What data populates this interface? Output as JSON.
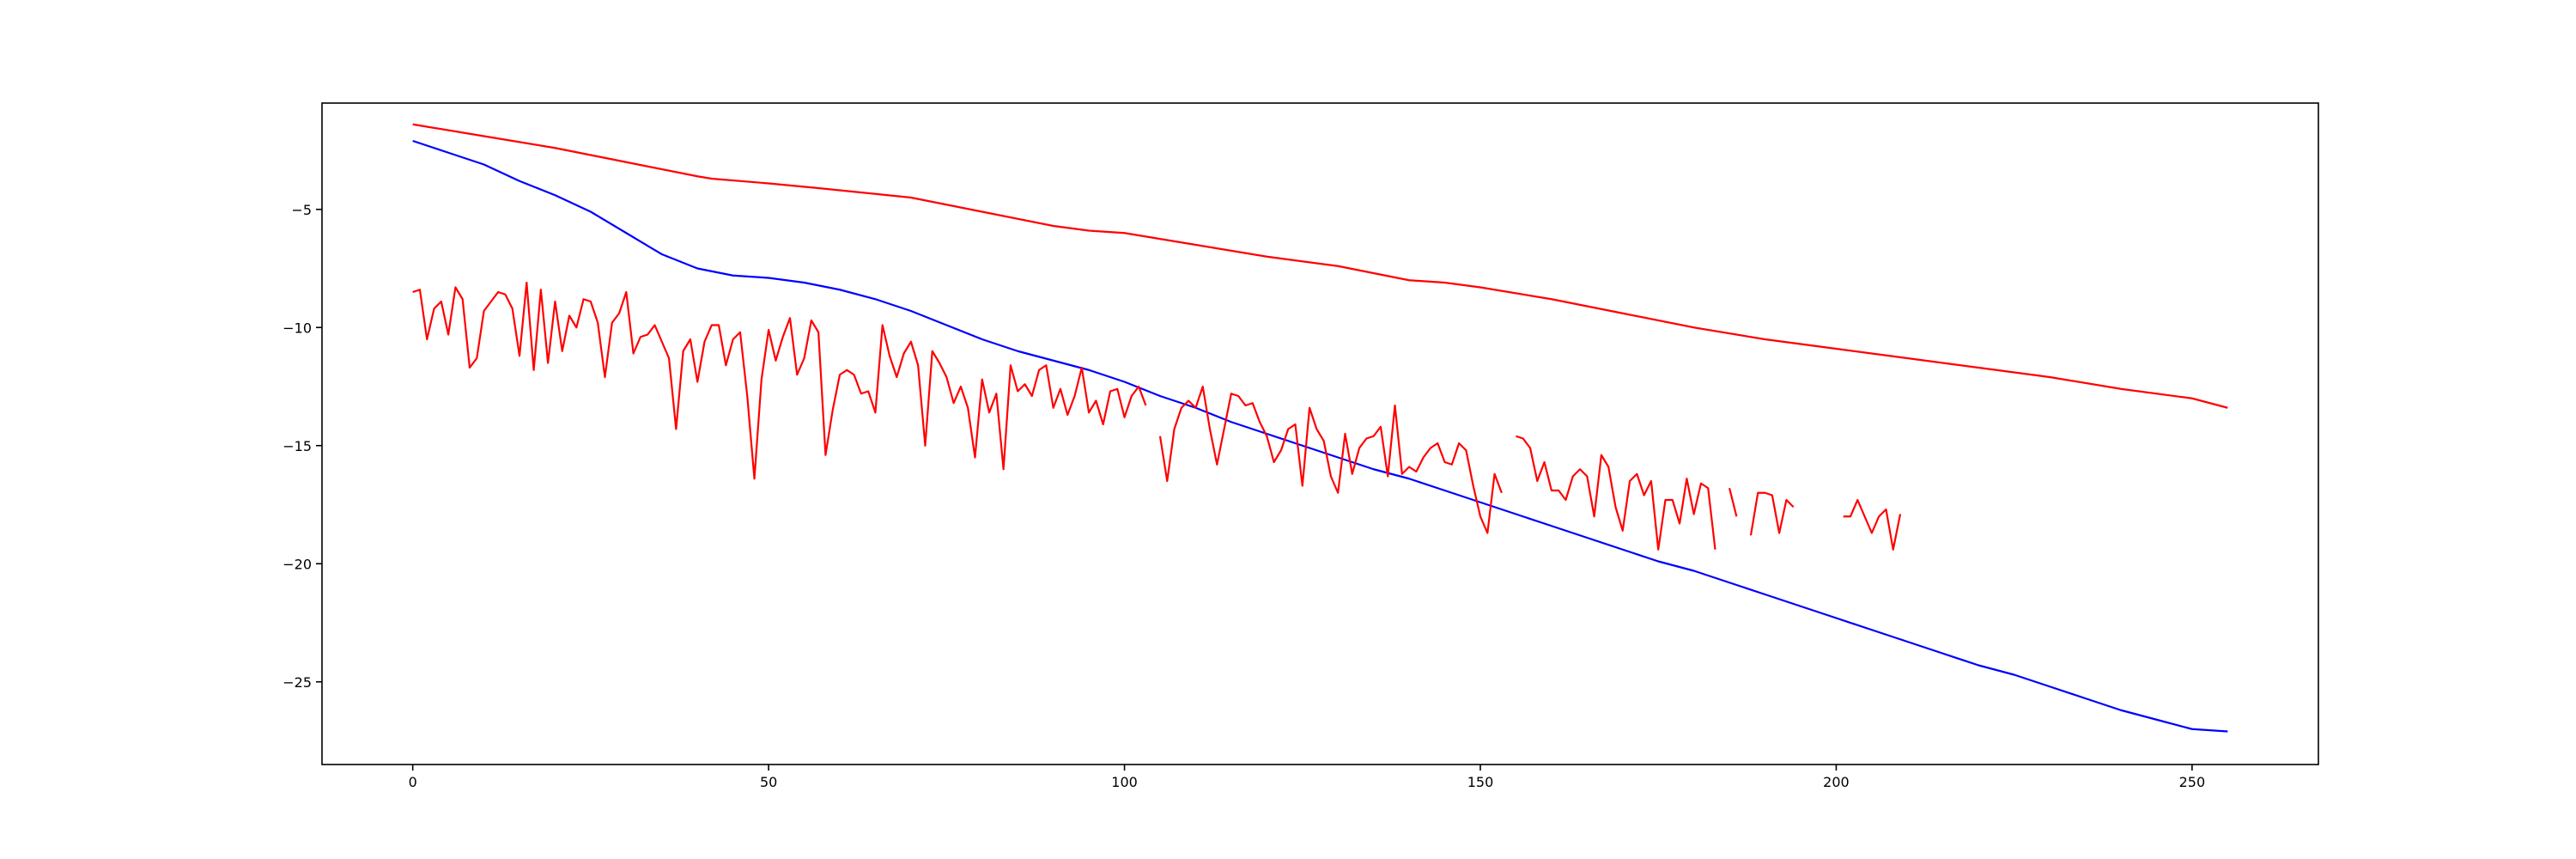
{
  "chart_data": {
    "type": "line",
    "title": "",
    "xlabel": "",
    "ylabel": "",
    "xlim": [
      -12.75,
      267.75
    ],
    "ylim": [
      -28.5,
      -0.5
    ],
    "grid": false,
    "legend": "none",
    "x_ticks": [
      {
        "value": 0,
        "label": "0"
      },
      {
        "value": 50,
        "label": "50"
      },
      {
        "value": 100,
        "label": "100"
      },
      {
        "value": 150,
        "label": "150"
      },
      {
        "value": 200,
        "label": "200"
      },
      {
        "value": 250,
        "label": "250"
      }
    ],
    "y_ticks": [
      {
        "value": -5,
        "label": "−5"
      },
      {
        "value": -10,
        "label": "−10"
      },
      {
        "value": -15,
        "label": "−15"
      },
      {
        "value": -20,
        "label": "−20"
      },
      {
        "value": -25,
        "label": "−25"
      }
    ],
    "series": [
      {
        "color": "#ff0000",
        "x": [
          0,
          10,
          20,
          30,
          40,
          42,
          50,
          57,
          70,
          80,
          90,
          95,
          100,
          110,
          120,
          130,
          140,
          145,
          150,
          160,
          170,
          180,
          190,
          200,
          210,
          220,
          230,
          240,
          250,
          255
        ],
        "y": [
          -1.4,
          -1.9,
          -2.4,
          -3.0,
          -3.6,
          -3.7,
          -3.9,
          -4.1,
          -4.5,
          -5.1,
          -5.7,
          -5.9,
          -6.0,
          -6.5,
          -7.0,
          -7.4,
          -8.0,
          -8.1,
          -8.3,
          -8.8,
          -9.4,
          -10.0,
          -10.5,
          -10.9,
          -11.3,
          -11.7,
          -12.1,
          -12.6,
          -13.0,
          -13.4
        ]
      },
      {
        "color": "#0000ff",
        "x": [
          0,
          5,
          10,
          15,
          20,
          25,
          30,
          35,
          40,
          45,
          50,
          55,
          60,
          65,
          70,
          75,
          80,
          85,
          90,
          95,
          100,
          105,
          110,
          115,
          120,
          125,
          130,
          135,
          140,
          145,
          150,
          155,
          160,
          165,
          170,
          175,
          180,
          185,
          190,
          195,
          200,
          205,
          210,
          215,
          220,
          225,
          230,
          235,
          240,
          245,
          250,
          255
        ],
        "y": [
          -2.1,
          -2.6,
          -3.1,
          -3.8,
          -4.4,
          -5.1,
          -6.0,
          -6.9,
          -7.5,
          -7.8,
          -7.9,
          -8.1,
          -8.4,
          -8.8,
          -9.3,
          -9.9,
          -10.5,
          -11.0,
          -11.4,
          -11.8,
          -12.3,
          -12.9,
          -13.4,
          -14.0,
          -14.5,
          -15.0,
          -15.5,
          -16.0,
          -16.4,
          -16.9,
          -17.4,
          -17.9,
          -18.4,
          -18.9,
          -19.4,
          -19.9,
          -20.3,
          -20.8,
          -21.3,
          -21.8,
          -22.3,
          -22.8,
          -23.3,
          -23.8,
          -24.3,
          -24.7,
          -25.2,
          -25.7,
          -26.2,
          -26.6,
          -27.0,
          -27.1
        ]
      },
      {
        "color": "#ff0000",
        "x": [
          0,
          1,
          2,
          3,
          4,
          5,
          6,
          7,
          8,
          9,
          10,
          11,
          12,
          13,
          14,
          15,
          16,
          17,
          18,
          19,
          20,
          21,
          22,
          23,
          24,
          25,
          26,
          27,
          28,
          29,
          30,
          31,
          32,
          33,
          34,
          35,
          36,
          37,
          38,
          39,
          40,
          41,
          42,
          43,
          44,
          45,
          46,
          47,
          48,
          49,
          50,
          51,
          52,
          53,
          54,
          55,
          56,
          57,
          58,
          59,
          60,
          61,
          62,
          63,
          64,
          65,
          66,
          67,
          68,
          69,
          70,
          71,
          72,
          73,
          74,
          75,
          76,
          77,
          78,
          79,
          80,
          81,
          82,
          83,
          84,
          85,
          86,
          87,
          88,
          89,
          90,
          91,
          92,
          93,
          94,
          95,
          96,
          97,
          98,
          99,
          100,
          101,
          102,
          103,
          104,
          105,
          106,
          107,
          108,
          109,
          110,
          111,
          112,
          113,
          114,
          115,
          116,
          117,
          118,
          119,
          120,
          121,
          122,
          123,
          124,
          125,
          126,
          127,
          128,
          129,
          130,
          131,
          132,
          133,
          134,
          135,
          136,
          137,
          138,
          139,
          140,
          141,
          142,
          143,
          144,
          145,
          146,
          147,
          148,
          149,
          150,
          151,
          152,
          153,
          154,
          155,
          156,
          157,
          158,
          159,
          160,
          161,
          162,
          163,
          164,
          165,
          166,
          167,
          168,
          169,
          170,
          171,
          172,
          173,
          174,
          175,
          176,
          177,
          178,
          179,
          180,
          181,
          182,
          183,
          184,
          185,
          186,
          187,
          188,
          189,
          190,
          191,
          192,
          193,
          194,
          195,
          196,
          197,
          198,
          199,
          200,
          201,
          202,
          203,
          204,
          205,
          206,
          207,
          208,
          209
        ],
        "y": [
          -8.5,
          -8.4,
          -10.5,
          -9.2,
          -8.9,
          -10.3,
          -8.3,
          -8.8,
          -11.7,
          -11.3,
          -9.3,
          -8.9,
          -8.5,
          -8.6,
          -9.2,
          -11.2,
          -8.1,
          -11.8,
          -8.4,
          -11.5,
          -8.9,
          -11.0,
          -9.5,
          -10.0,
          -8.8,
          -8.9,
          -9.8,
          -12.1,
          -9.8,
          -9.4,
          -8.5,
          -11.1,
          -10.4,
          -10.3,
          -9.9,
          -10.6,
          -11.3,
          -14.3,
          -11.0,
          -10.5,
          -12.3,
          -10.6,
          -9.9,
          -9.9,
          -11.6,
          -10.5,
          -10.2,
          -12.9,
          -16.4,
          -12.2,
          -10.1,
          -11.4,
          -10.4,
          -9.6,
          -12.0,
          -11.3,
          -9.7,
          -10.2,
          -15.4,
          -13.5,
          -12.0,
          -11.8,
          -12.0,
          -12.8,
          -12.7,
          -13.6,
          -9.9,
          -11.2,
          -12.1,
          -11.1,
          -10.6,
          -11.6,
          -15.0,
          -11.0,
          -11.5,
          -12.1,
          -13.2,
          -12.5,
          -13.4,
          -15.5,
          -12.2,
          -13.6,
          -12.8,
          -16.0,
          -11.6,
          -12.7,
          -12.4,
          -12.9,
          -11.8,
          -11.6,
          -13.4,
          -12.6,
          -13.7,
          -12.9,
          -11.7,
          -13.6,
          -13.1,
          -14.1,
          -12.7,
          -12.6,
          -13.8,
          -12.9,
          -12.5,
          -13.3,
          null,
          -14.6,
          -16.5,
          -14.3,
          -13.4,
          -13.1,
          -13.4,
          -12.5,
          -14.3,
          -15.8,
          -14.3,
          -12.8,
          -12.9,
          -13.3,
          -13.2,
          -14.0,
          -14.6,
          -15.7,
          -15.2,
          -14.3,
          -14.1,
          -16.7,
          -13.4,
          -14.3,
          -14.8,
          -16.3,
          -17.0,
          -14.5,
          -16.2,
          -15.1,
          -14.7,
          -14.6,
          -14.2,
          -16.3,
          -13.3,
          -16.2,
          -15.9,
          -16.1,
          -15.5,
          -15.1,
          -14.9,
          -15.7,
          -15.8,
          -14.9,
          -15.2,
          -16.7,
          -18.0,
          -18.7,
          -16.2,
          -17.0,
          null,
          -14.6,
          -14.7,
          -15.1,
          -16.5,
          -15.7,
          -16.9,
          -16.9,
          -17.3,
          -16.3,
          -16.0,
          -16.3,
          -18.0,
          -15.4,
          -15.9,
          -17.6,
          -18.6,
          -16.5,
          -16.2,
          -17.1,
          -16.5,
          -19.4,
          -17.3,
          -17.3,
          -18.3,
          -16.4,
          -17.9,
          -16.6,
          -16.8,
          -19.4,
          null,
          -16.8,
          -18.0,
          null,
          -18.8,
          -17.0,
          -17.0,
          -17.1,
          -18.7,
          -17.3,
          -17.6,
          null,
          null,
          null,
          null,
          null,
          null,
          -18.0,
          -18.0,
          -17.3,
          -18.0,
          -18.7,
          -18.0,
          -17.7,
          -19.4,
          -17.9
        ]
      }
    ]
  }
}
